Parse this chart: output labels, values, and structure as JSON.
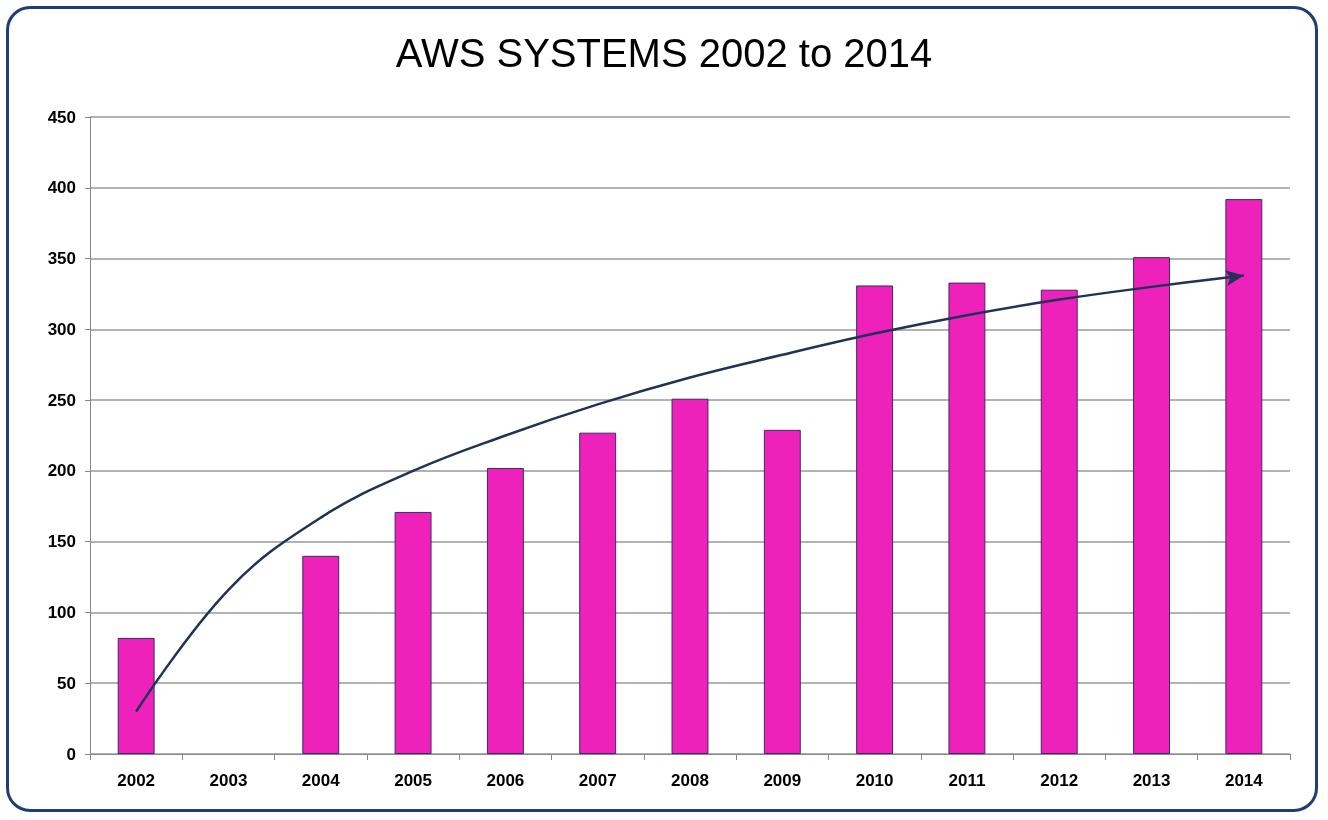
{
  "chart_data": {
    "type": "bar",
    "title": "AWS SYSTEMS 2002 to 2014",
    "categories": [
      "2002",
      "2003",
      "2004",
      "2005",
      "2006",
      "2007",
      "2008",
      "2009",
      "2010",
      "2011",
      "2012",
      "2013",
      "2014"
    ],
    "series": [
      {
        "color": "#ee22bb",
        "values": [
          82,
          null,
          140,
          171,
          202,
          227,
          251,
          229,
          331,
          333,
          328,
          351,
          392
        ]
      },
      {
        "type": "line",
        "color": "#1f3358",
        "marker": "none",
        "values": [
          30,
          116,
          167,
          200,
          225,
          247,
          266,
          282,
          297,
          310,
          321,
          330,
          338
        ]
      }
    ],
    "ylim": [
      0,
      450
    ],
    "yticks": [
      0,
      50,
      100,
      150,
      200,
      250,
      300,
      350,
      400,
      450
    ],
    "grid": "y"
  }
}
